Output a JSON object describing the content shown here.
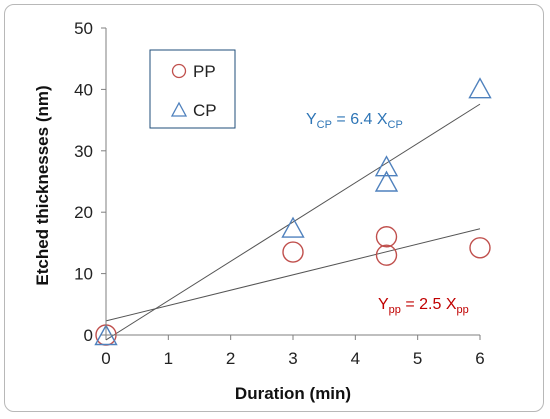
{
  "chart_data": {
    "type": "scatter",
    "xlabel": "Duration (min)",
    "ylabel": "Etched thicknesses (nm)",
    "xlim": [
      0,
      6
    ],
    "ylim": [
      0,
      50
    ],
    "x_ticks": [
      0,
      1,
      2,
      3,
      4,
      5,
      6
    ],
    "y_ticks": [
      0,
      10,
      20,
      30,
      40,
      50
    ],
    "legend_placement": "top-left",
    "grid": false,
    "series": [
      {
        "name": "PP",
        "marker": "circle",
        "color": "#c0504d",
        "points": [
          [
            0,
            0
          ],
          [
            3,
            13.5
          ],
          [
            4.5,
            16
          ],
          [
            4.5,
            13
          ],
          [
            6,
            14.2
          ]
        ],
        "fit": {
          "slope": 2.5,
          "intercept": 2.3,
          "label_main": "Y",
          "label_sub": "pp",
          "label_mid": " = 2.5 X",
          "label_sub2": "pp",
          "label_color": "#c00000"
        }
      },
      {
        "name": "CP",
        "marker": "triangle",
        "color": "#4f81bd",
        "points": [
          [
            0,
            0
          ],
          [
            3,
            17.5
          ],
          [
            4.5,
            27.5
          ],
          [
            4.5,
            25
          ],
          [
            6,
            40.2
          ]
        ],
        "fit": {
          "slope": 6.4,
          "intercept": -0.8,
          "label_main": "Y",
          "label_sub": "CP",
          "label_mid": " = 6.4 X",
          "label_sub2": "CP",
          "label_color": "#2e75b6"
        }
      }
    ]
  }
}
